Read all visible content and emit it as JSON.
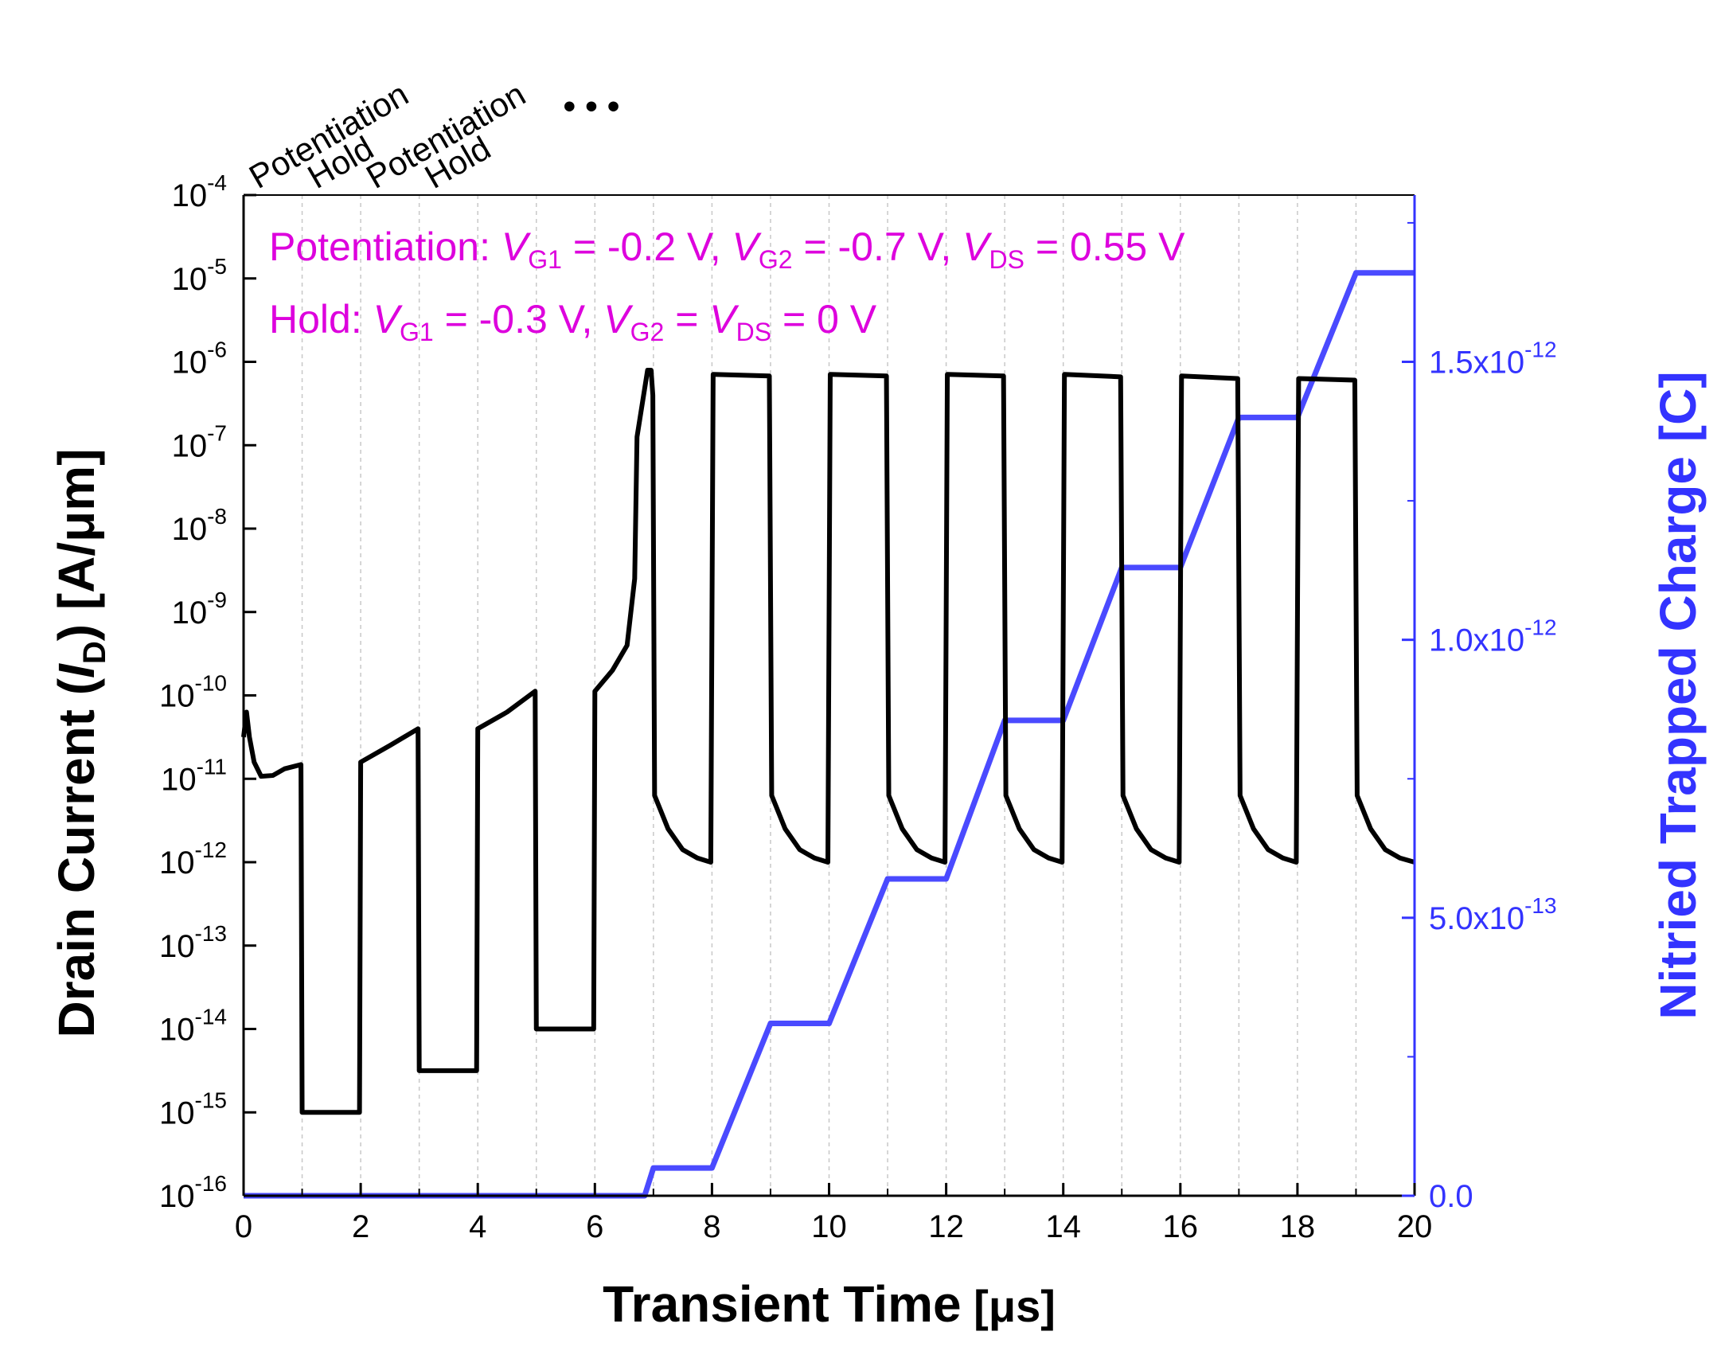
{
  "chart_data": {
    "type": "line",
    "x": {
      "label_main": "Transient Time",
      "label_unit": "[μs]",
      "range": [
        0,
        20
      ],
      "ticks": [
        0,
        2,
        4,
        6,
        8,
        10,
        12,
        14,
        16,
        18,
        20
      ],
      "gridlines": [
        1,
        2,
        3,
        4,
        5,
        6,
        7,
        8,
        9,
        10,
        11,
        12,
        13,
        14,
        15,
        16,
        17,
        18,
        19
      ]
    },
    "y_left": {
      "label": {
        "pre": "Drain Current (",
        "italic": "I",
        "sub": "D",
        "post": ") [A/μm]"
      },
      "scale": "log",
      "range_exp": [
        -16,
        -4
      ],
      "tick_base": "10",
      "tick_exponents": [
        "-16",
        "-15",
        "-14",
        "-13",
        "-12",
        "-11",
        "-10",
        "-9",
        "-8",
        "-7",
        "-6",
        "-5",
        "-4"
      ],
      "color": "#000000"
    },
    "y_right": {
      "label": "Nitried Trapped Charge [C]",
      "range": [
        0,
        1.8e-12
      ],
      "ticks": [
        {
          "value": 0,
          "text": "0.0",
          "exp": ""
        },
        {
          "value": 5e-13,
          "text": "5.0x10",
          "exp": "-13"
        },
        {
          "value": 1e-12,
          "text": "1.0x10",
          "exp": "-12"
        },
        {
          "value": 1.5e-12,
          "text": "1.5x10",
          "exp": "-12"
        }
      ],
      "minor_ticks": [
        2.5e-13,
        7.5e-13,
        1.25e-12,
        1.75e-12
      ],
      "color": "#3333ff"
    },
    "series": [
      {
        "name": "Drain Current",
        "axis": "left",
        "color": "#000000",
        "points": [
          [
            0,
            -10.5
          ],
          [
            0.05,
            -10.2
          ],
          [
            0.1,
            -10.5
          ],
          [
            0.18,
            -10.8
          ],
          [
            0.3,
            -10.97
          ],
          [
            0.5,
            -10.96
          ],
          [
            0.7,
            -10.88
          ],
          [
            0.98,
            -10.83
          ],
          [
            1.0,
            -15.0
          ],
          [
            1.98,
            -15.0
          ],
          [
            2.0,
            -10.8
          ],
          [
            2.5,
            -10.6
          ],
          [
            2.98,
            -10.4
          ],
          [
            3.0,
            -14.5
          ],
          [
            3.98,
            -14.5
          ],
          [
            4.0,
            -10.4
          ],
          [
            4.5,
            -10.2
          ],
          [
            4.98,
            -9.95
          ],
          [
            5.0,
            -14.0
          ],
          [
            5.98,
            -14.0
          ],
          [
            6.0,
            -9.95
          ],
          [
            6.3,
            -9.7
          ],
          [
            6.55,
            -9.4
          ],
          [
            6.68,
            -8.6
          ],
          [
            6.72,
            -6.9
          ],
          [
            6.9,
            -6.1
          ],
          [
            6.96,
            -6.1
          ],
          [
            6.99,
            -6.4
          ],
          [
            7.02,
            -11.2
          ],
          [
            7.25,
            -11.6
          ],
          [
            7.5,
            -11.85
          ],
          [
            7.75,
            -11.95
          ],
          [
            7.98,
            -12.0
          ],
          [
            8.02,
            -6.15
          ],
          [
            8.98,
            -6.17
          ],
          [
            9.02,
            -11.2
          ],
          [
            9.25,
            -11.6
          ],
          [
            9.5,
            -11.85
          ],
          [
            9.75,
            -11.95
          ],
          [
            9.98,
            -12.0
          ],
          [
            10.02,
            -6.15
          ],
          [
            10.98,
            -6.17
          ],
          [
            11.02,
            -11.2
          ],
          [
            11.25,
            -11.6
          ],
          [
            11.5,
            -11.85
          ],
          [
            11.75,
            -11.95
          ],
          [
            11.98,
            -12.0
          ],
          [
            12.02,
            -6.15
          ],
          [
            12.98,
            -6.17
          ],
          [
            13.02,
            -11.2
          ],
          [
            13.25,
            -11.6
          ],
          [
            13.5,
            -11.85
          ],
          [
            13.75,
            -11.95
          ],
          [
            13.98,
            -12.0
          ],
          [
            14.02,
            -6.15
          ],
          [
            14.98,
            -6.18
          ],
          [
            15.02,
            -11.2
          ],
          [
            15.25,
            -11.6
          ],
          [
            15.5,
            -11.85
          ],
          [
            15.75,
            -11.95
          ],
          [
            15.98,
            -12.0
          ],
          [
            16.02,
            -6.17
          ],
          [
            16.98,
            -6.2
          ],
          [
            17.02,
            -11.2
          ],
          [
            17.25,
            -11.6
          ],
          [
            17.5,
            -11.85
          ],
          [
            17.75,
            -11.95
          ],
          [
            17.98,
            -12.0
          ],
          [
            18.02,
            -6.2
          ],
          [
            18.98,
            -6.22
          ],
          [
            19.02,
            -11.2
          ],
          [
            19.25,
            -11.6
          ],
          [
            19.5,
            -11.85
          ],
          [
            19.75,
            -11.95
          ],
          [
            20.0,
            -12.0
          ]
        ]
      },
      {
        "name": "Nitried Trapped Charge",
        "axis": "right",
        "color": "#4a4aff",
        "points": [
          [
            0,
            0
          ],
          [
            6.85,
            0
          ],
          [
            7.0,
            5e-14
          ],
          [
            8.0,
            5e-14
          ],
          [
            9.0,
            3.1e-13
          ],
          [
            10.0,
            3.1e-13
          ],
          [
            11.0,
            5.7e-13
          ],
          [
            12.0,
            5.7e-13
          ],
          [
            13.0,
            8.55e-13
          ],
          [
            14.0,
            8.55e-13
          ],
          [
            15.0,
            1.13e-12
          ],
          [
            16.0,
            1.13e-12
          ],
          [
            17.0,
            1.4e-12
          ],
          [
            18.0,
            1.4e-12
          ],
          [
            19.0,
            1.66e-12
          ],
          [
            20.0,
            1.66e-12
          ]
        ]
      }
    ],
    "annotations": {
      "line1": {
        "pre": "Potentiation: ",
        "terms": [
          [
            "V",
            "G1",
            " = -0.2 V, "
          ],
          [
            "V",
            "G2",
            " = -0.7 V, "
          ],
          [
            "V",
            "DS",
            " = 0.55 V"
          ]
        ]
      },
      "line2": {
        "pre": "Hold: ",
        "terms": [
          [
            "V",
            "G1",
            " = -0.3 V, "
          ],
          [
            "V",
            "G2",
            " = "
          ],
          [
            "V",
            "DS",
            " = 0 V"
          ]
        ]
      },
      "color": "#dd00dd",
      "phase_labels": [
        {
          "text": "Potentiation",
          "x": 0
        },
        {
          "text": "Hold",
          "x": 1
        },
        {
          "text": "Potentiation",
          "x": 2
        },
        {
          "text": "Hold",
          "x": 3
        }
      ],
      "ellipsis": "• • •"
    }
  }
}
